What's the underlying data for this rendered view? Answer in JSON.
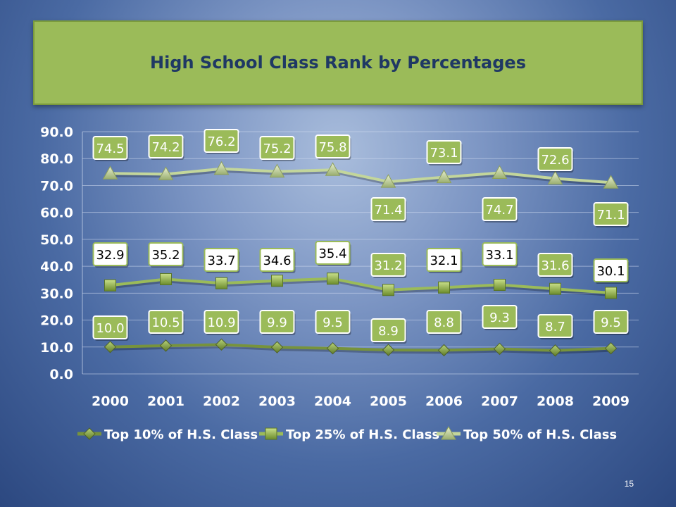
{
  "slide": {
    "title": "High School Class Rank by Percentages",
    "page_number": "15"
  },
  "colors": {
    "title_bg": "#9bbb59",
    "title_text": "#1f3864",
    "top10": "#77933c",
    "top25": "#9bbb59",
    "top50": "#c3d69b",
    "label_green_bg": "#9bbb59",
    "label_white_bg": "#ffffff"
  },
  "chart_data": {
    "type": "line",
    "categories": [
      "2000",
      "2001",
      "2002",
      "2003",
      "2004",
      "2005",
      "2006",
      "2007",
      "2008",
      "2009"
    ],
    "y_tick_labels": [
      "0.0",
      "10.0",
      "20.0",
      "30.0",
      "40.0",
      "50.0",
      "60.0",
      "70.0",
      "80.0",
      "90.0"
    ],
    "ylim": [
      0,
      90
    ],
    "grid": true,
    "legend_position": "bottom",
    "series": [
      {
        "name": "Top 10% of H.S. Class",
        "marker": "diamond",
        "values": [
          10.0,
          10.5,
          10.9,
          9.9,
          9.5,
          8.9,
          8.8,
          9.3,
          8.7,
          9.5
        ],
        "labels": [
          "10.0",
          "10.5",
          "10.9",
          "9.9",
          "9.5",
          "8.9",
          "8.8",
          "9.3",
          "8.7",
          "9.5"
        ]
      },
      {
        "name": "Top 25% of H.S. Class",
        "marker": "square",
        "values": [
          32.9,
          35.2,
          33.7,
          34.6,
          35.4,
          31.2,
          32.1,
          33.1,
          31.6,
          30.1
        ],
        "labels": [
          "32.9",
          "35.2",
          "33.7",
          "34.6",
          "35.4",
          "31.2",
          "32.1",
          "33.1",
          "31.6",
          "30.1"
        ]
      },
      {
        "name": "Top 50% of H.S. Class",
        "marker": "triangle",
        "values": [
          74.5,
          74.2,
          76.2,
          75.2,
          75.8,
          71.4,
          73.1,
          74.7,
          72.6,
          71.1
        ],
        "labels": [
          "74.5",
          "74.2",
          "76.2",
          "75.2",
          "75.8",
          "71.4",
          "73.1",
          "74.7",
          "72.6",
          "71.1"
        ]
      }
    ]
  }
}
